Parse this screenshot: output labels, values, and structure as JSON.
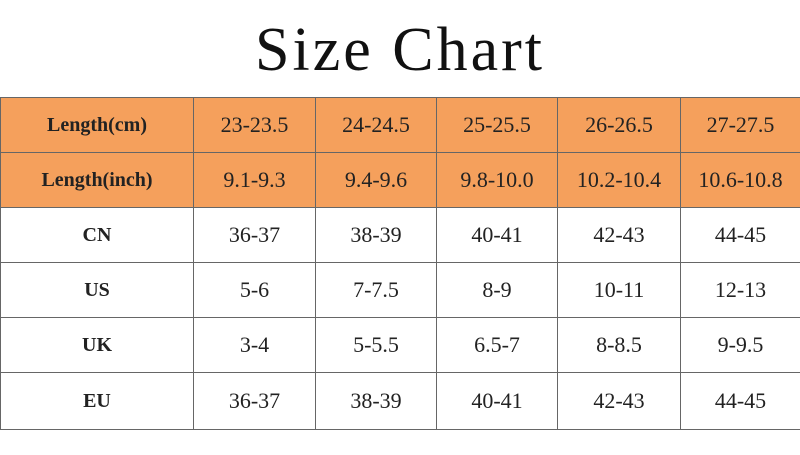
{
  "title": "Size Chart",
  "table": {
    "rows": [
      [
        "Length(cm)",
        "23-23.5",
        "24-24.5",
        "25-25.5",
        "26-26.5",
        "27-27.5"
      ],
      [
        "Length(inch)",
        "9.1-9.3",
        "9.4-9.6",
        "9.8-10.0",
        "10.2-10.4",
        "10.6-10.8"
      ],
      [
        "CN",
        "36-37",
        "38-39",
        "40-41",
        "42-43",
        "44-45"
      ],
      [
        "US",
        "5-6",
        "7-7.5",
        "8-9",
        "10-11",
        "12-13"
      ],
      [
        "UK",
        "3-4",
        "5-5.5",
        "6.5-7",
        "8-8.5",
        "9-9.5"
      ],
      [
        "EU",
        "36-37",
        "38-39",
        "40-41",
        "42-43",
        "44-45"
      ]
    ]
  }
}
